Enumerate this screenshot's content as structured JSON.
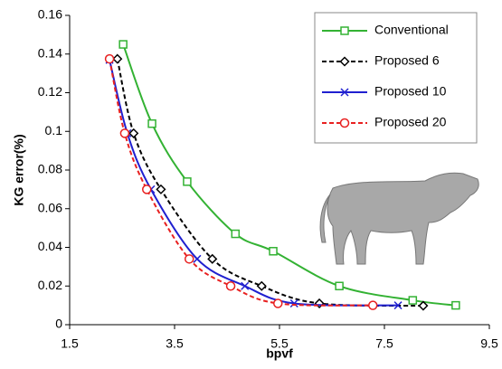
{
  "chart_data": {
    "type": "line",
    "x_label": "bpvf",
    "y_label": "KG error(%)",
    "xlim": [
      1.5,
      9.5
    ],
    "xticks": [
      1.5,
      3.5,
      5.5,
      7.5,
      9.5
    ],
    "ylim": [
      0,
      0.16
    ],
    "yticks": [
      0,
      0.02,
      0.04,
      0.06,
      0.08,
      0.1,
      0.12,
      0.14,
      0.16
    ],
    "legend": "upper right",
    "series": [
      {
        "name": "Conventional",
        "color": "#33b233",
        "marker": "square",
        "dash": "solid",
        "x": [
          2.52,
          3.07,
          3.74,
          4.66,
          5.38,
          6.64,
          8.04,
          8.86
        ],
        "values": [
          0.145,
          0.104,
          0.074,
          0.047,
          0.038,
          0.02,
          0.0126,
          0.01
        ]
      },
      {
        "name": "Proposed 6",
        "color": "#000000",
        "marker": "diamond",
        "dash": "dashed",
        "x": [
          2.41,
          2.72,
          3.24,
          4.22,
          5.16,
          6.26,
          8.24
        ],
        "values": [
          0.1375,
          0.099,
          0.07,
          0.034,
          0.02,
          0.011,
          0.0098
        ]
      },
      {
        "name": "Proposed 10",
        "color": "#2020d0",
        "marker": "x",
        "dash": "solid",
        "x": [
          2.26,
          2.6,
          3.05,
          3.93,
          4.84,
          5.78,
          7.76
        ],
        "values": [
          0.137,
          0.099,
          0.07,
          0.034,
          0.02,
          0.011,
          0.01
        ]
      },
      {
        "name": "Proposed 20",
        "color": "#e82020",
        "marker": "circle",
        "dash": "dashed",
        "x": [
          2.26,
          2.55,
          2.97,
          3.78,
          4.57,
          5.47,
          7.28
        ],
        "values": [
          0.1375,
          0.099,
          0.07,
          0.034,
          0.02,
          0.011,
          0.01
        ]
      }
    ]
  }
}
